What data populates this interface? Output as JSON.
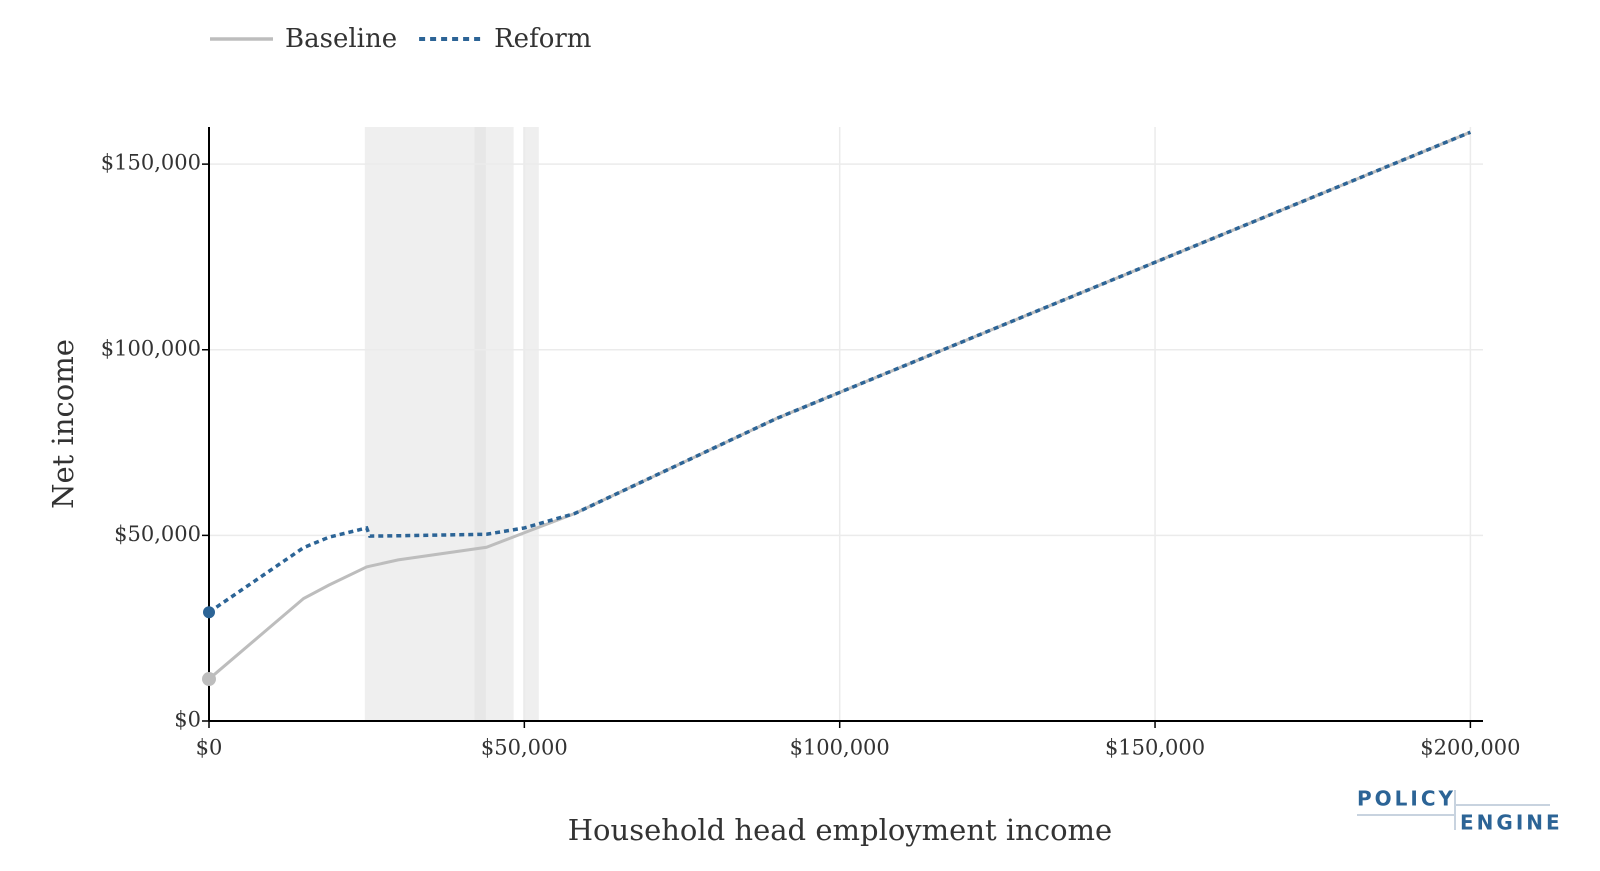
{
  "chart_data": {
    "type": "line",
    "x_label": "Household head employment income",
    "y_label": "Net income",
    "x": [
      0,
      15000,
      19000,
      25000,
      25500,
      30000,
      44000,
      50000,
      58000,
      90000,
      200000
    ],
    "series": [
      {
        "name": "Baseline",
        "color": "#bdbdbd",
        "dash": false,
        "values": [
          11300,
          33000,
          36600,
          41500,
          41700,
          43400,
          46800,
          50700,
          55900,
          81500,
          158600
        ]
      },
      {
        "name": "Reform",
        "color": "#2c6496",
        "dash": true,
        "values": [
          29300,
          46700,
          49500,
          52000,
          49800,
          49900,
          50300,
          52000,
          55900,
          81500,
          158600
        ]
      }
    ],
    "shaded_regions": [
      [
        24700,
        48300
      ],
      [
        42100,
        43900
      ],
      [
        49800,
        52300
      ]
    ],
    "xlim": [
      0,
      202000
    ],
    "ylim": [
      0,
      160000
    ],
    "xticks": [
      {
        "value": 0,
        "label": "$0"
      },
      {
        "value": 50000,
        "label": "$50,000"
      },
      {
        "value": 100000,
        "label": "$100,000"
      },
      {
        "value": 150000,
        "label": "$150,000"
      },
      {
        "value": 200000,
        "label": "$200,000"
      }
    ],
    "yticks": [
      {
        "value": 0,
        "label": "$0"
      },
      {
        "value": 50000,
        "label": "$50,000"
      },
      {
        "value": 100000,
        "label": "$100,000"
      },
      {
        "value": 150000,
        "label": "$150,000"
      }
    ],
    "grid": true,
    "legend": "top-left"
  },
  "logo": {
    "line1": "POLICY",
    "line2": "ENGINE"
  }
}
